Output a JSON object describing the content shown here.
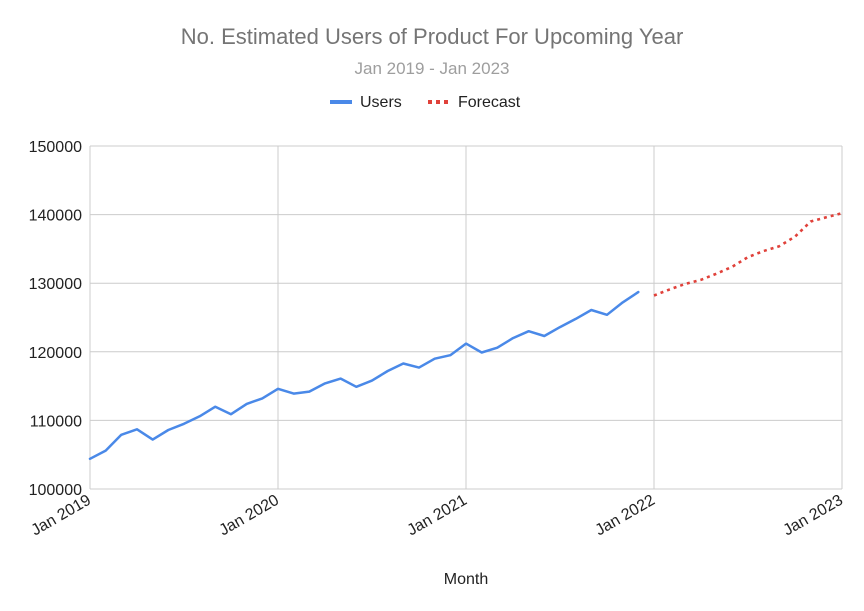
{
  "chart_data": {
    "type": "line",
    "title": "No. Estimated Users of Product For Upcoming Year",
    "subtitle": "Jan 2019 - Jan 2023",
    "xlabel": "Month",
    "ylabel": "",
    "ylim": [
      100000,
      150000
    ],
    "yticks": [
      "100000",
      "110000",
      "120000",
      "130000",
      "140000",
      "150000"
    ],
    "xlim": [
      "2019-01",
      "2023-01"
    ],
    "xticks": [
      "Jan 2019",
      "Jan 2020",
      "Jan 2021",
      "Jan 2022",
      "Jan 2023"
    ],
    "grid": true,
    "legend_position": "top",
    "series": [
      {
        "name": "Users",
        "color": "#4a89e8",
        "style": "solid",
        "x": [
          "2019-01",
          "2019-02",
          "2019-03",
          "2019-04",
          "2019-05",
          "2019-06",
          "2019-07",
          "2019-08",
          "2019-09",
          "2019-10",
          "2019-11",
          "2019-12",
          "2020-01",
          "2020-02",
          "2020-03",
          "2020-04",
          "2020-05",
          "2020-06",
          "2020-07",
          "2020-08",
          "2020-09",
          "2020-10",
          "2020-11",
          "2020-12",
          "2021-01",
          "2021-02",
          "2021-03",
          "2021-04",
          "2021-05",
          "2021-06",
          "2021-07",
          "2021-08",
          "2021-09",
          "2021-10",
          "2021-11",
          "2021-12"
        ],
        "values": [
          104400,
          105600,
          107900,
          108700,
          107200,
          108600,
          109500,
          110600,
          112000,
          110900,
          112400,
          113200,
          114600,
          113900,
          114200,
          115400,
          116100,
          114900,
          115800,
          117200,
          118300,
          117700,
          119000,
          119500,
          121200,
          119900,
          120600,
          122000,
          123000,
          122300,
          123600,
          124800,
          126100,
          125400,
          127200,
          128700
        ]
      },
      {
        "name": "Forecast",
        "color": "#e0413a",
        "style": "dotted",
        "x": [
          "2022-01",
          "2022-02",
          "2022-03",
          "2022-04",
          "2022-05",
          "2022-06",
          "2022-07",
          "2022-08",
          "2022-09",
          "2022-10",
          "2022-11",
          "2022-12",
          "2023-01"
        ],
        "values": [
          128200,
          129100,
          129900,
          130500,
          131400,
          132400,
          133800,
          134700,
          135400,
          136800,
          139000,
          139600,
          140200
        ]
      }
    ]
  }
}
